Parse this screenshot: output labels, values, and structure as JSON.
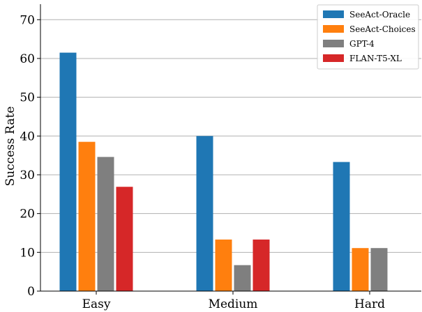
{
  "chart_data": {
    "type": "bar",
    "title": "",
    "xlabel": "",
    "ylabel": "Success Rate",
    "ylim": [
      0,
      74
    ],
    "yticks": [
      0,
      10,
      20,
      30,
      40,
      50,
      60,
      70
    ],
    "grid": "horizontal",
    "legend_position": "top-right",
    "categories": [
      "Easy",
      "Medium",
      "Hard"
    ],
    "series": [
      {
        "name": "SeeAct-Oracle",
        "color": "#1f77b4",
        "values": [
          61.5,
          40.0,
          33.3
        ]
      },
      {
        "name": "SeeAct-Choices",
        "color": "#ff7f0e",
        "values": [
          38.5,
          13.3,
          11.1
        ]
      },
      {
        "name": "GPT-4",
        "color": "#7f7f7f",
        "values": [
          34.6,
          6.7,
          11.1
        ]
      },
      {
        "name": "FLAN-T5-XL",
        "color": "#d62728",
        "values": [
          26.9,
          13.3,
          null
        ]
      }
    ]
  }
}
